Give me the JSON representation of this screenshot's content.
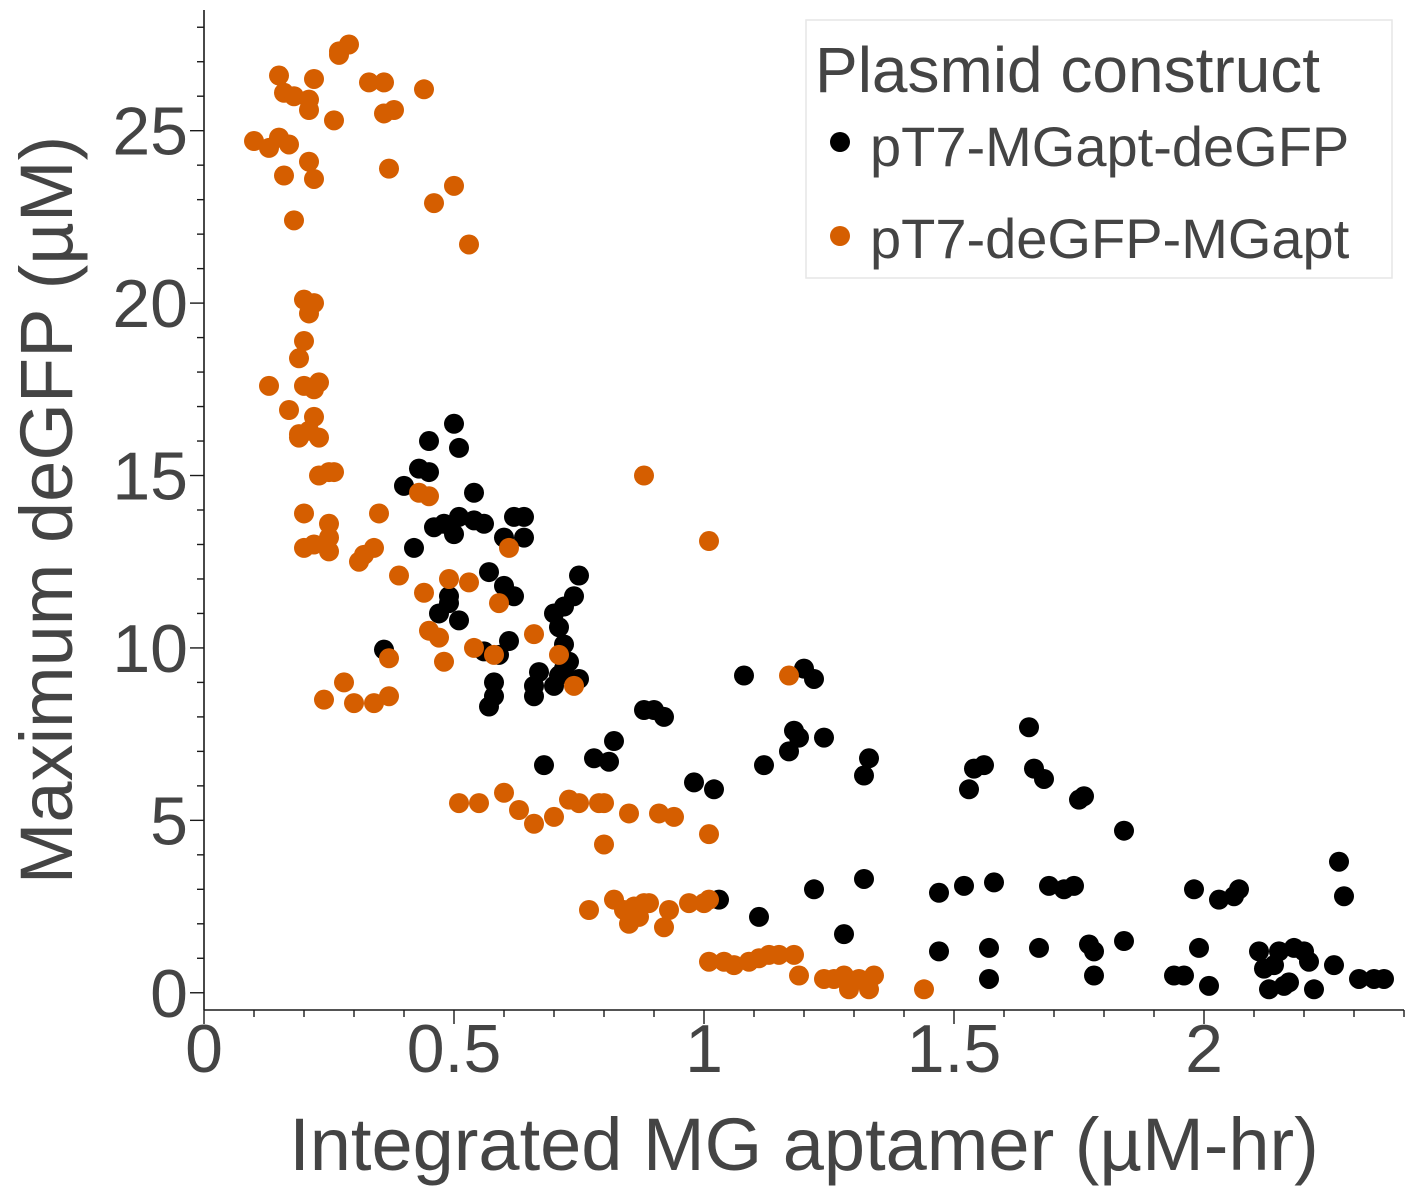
{
  "chart_data": {
    "type": "scatter",
    "title": "",
    "xlabel": "Integrated MG aptamer (µM-hr)",
    "ylabel": "Maximum deGFP (µM)",
    "xlim": [
      0,
      2.4
    ],
    "ylim": [
      -0.5,
      28.5
    ],
    "x_ticks": [
      0,
      0.5,
      1,
      1.5,
      2
    ],
    "x_tick_labels": [
      "0",
      "0.5",
      "1",
      "1.5",
      "2"
    ],
    "y_ticks": [
      0,
      5,
      10,
      15,
      20,
      25
    ],
    "y_tick_labels": [
      "0",
      "5",
      "10",
      "15",
      "20",
      "25"
    ],
    "grid": false,
    "legend": {
      "title": "Plasmid construct",
      "position": "top-right"
    },
    "series": [
      {
        "name": "pT7-MGapt-deGFP",
        "color": "#000000",
        "points": [
          [
            0.36,
            9.95
          ],
          [
            0.4,
            14.7
          ],
          [
            0.42,
            12.9
          ],
          [
            0.43,
            15.2
          ],
          [
            0.45,
            16.0
          ],
          [
            0.45,
            15.1
          ],
          [
            0.46,
            13.5
          ],
          [
            0.47,
            11.0
          ],
          [
            0.48,
            13.6
          ],
          [
            0.49,
            11.3
          ],
          [
            0.49,
            11.5
          ],
          [
            0.5,
            16.5
          ],
          [
            0.5,
            13.3
          ],
          [
            0.51,
            13.8
          ],
          [
            0.51,
            15.8
          ],
          [
            0.51,
            10.8
          ],
          [
            0.54,
            13.7
          ],
          [
            0.54,
            14.5
          ],
          [
            0.56,
            13.6
          ],
          [
            0.56,
            9.9
          ],
          [
            0.57,
            12.2
          ],
          [
            0.57,
            8.3
          ],
          [
            0.58,
            8.6
          ],
          [
            0.58,
            9.0
          ],
          [
            0.59,
            9.8
          ],
          [
            0.6,
            13.2
          ],
          [
            0.6,
            11.8
          ],
          [
            0.61,
            10.2
          ],
          [
            0.62,
            13.8
          ],
          [
            0.62,
            11.5
          ],
          [
            0.64,
            13.8
          ],
          [
            0.64,
            13.2
          ],
          [
            0.66,
            8.6
          ],
          [
            0.66,
            8.9
          ],
          [
            0.67,
            9.3
          ],
          [
            0.68,
            6.6
          ],
          [
            0.7,
            11.0
          ],
          [
            0.7,
            8.9
          ],
          [
            0.71,
            9.2
          ],
          [
            0.71,
            10.6
          ],
          [
            0.72,
            11.2
          ],
          [
            0.72,
            10.1
          ],
          [
            0.72,
            9.4
          ],
          [
            0.73,
            9.6
          ],
          [
            0.74,
            11.5
          ],
          [
            0.75,
            9.1
          ],
          [
            0.75,
            12.1
          ],
          [
            0.78,
            6.8
          ],
          [
            0.81,
            6.7
          ],
          [
            0.82,
            7.3
          ],
          [
            0.88,
            8.2
          ],
          [
            0.9,
            8.2
          ],
          [
            0.92,
            8.0
          ],
          [
            0.98,
            6.1
          ],
          [
            1.02,
            5.9
          ],
          [
            1.03,
            2.7
          ],
          [
            1.08,
            9.2
          ],
          [
            1.11,
            2.2
          ],
          [
            1.12,
            6.6
          ],
          [
            1.17,
            7.0
          ],
          [
            1.18,
            7.6
          ],
          [
            1.19,
            7.4
          ],
          [
            1.2,
            9.4
          ],
          [
            1.22,
            9.1
          ],
          [
            1.22,
            3.0
          ],
          [
            1.24,
            7.4
          ],
          [
            1.28,
            1.7
          ],
          [
            1.32,
            3.3
          ],
          [
            1.32,
            6.3
          ],
          [
            1.33,
            6.8
          ],
          [
            1.47,
            2.9
          ],
          [
            1.47,
            1.2
          ],
          [
            1.52,
            3.1
          ],
          [
            1.53,
            5.9
          ],
          [
            1.54,
            6.5
          ],
          [
            1.56,
            6.6
          ],
          [
            1.57,
            1.3
          ],
          [
            1.57,
            0.4
          ],
          [
            1.58,
            3.2
          ],
          [
            1.65,
            7.7
          ],
          [
            1.66,
            6.5
          ],
          [
            1.67,
            1.3
          ],
          [
            1.68,
            6.2
          ],
          [
            1.69,
            3.1
          ],
          [
            1.72,
            3.0
          ],
          [
            1.74,
            3.1
          ],
          [
            1.75,
            5.6
          ],
          [
            1.76,
            5.7
          ],
          [
            1.77,
            1.4
          ],
          [
            1.78,
            0.5
          ],
          [
            1.78,
            1.2
          ],
          [
            1.84,
            1.5
          ],
          [
            1.84,
            4.7
          ],
          [
            1.94,
            0.5
          ],
          [
            1.96,
            0.5
          ],
          [
            1.98,
            3.0
          ],
          [
            1.99,
            1.3
          ],
          [
            2.01,
            0.2
          ],
          [
            2.03,
            2.7
          ],
          [
            2.06,
            2.8
          ],
          [
            2.07,
            3.0
          ],
          [
            2.11,
            1.2
          ],
          [
            2.12,
            0.7
          ],
          [
            2.13,
            0.1
          ],
          [
            2.14,
            0.8
          ],
          [
            2.15,
            1.2
          ],
          [
            2.16,
            0.2
          ],
          [
            2.17,
            0.3
          ],
          [
            2.18,
            1.3
          ],
          [
            2.2,
            1.2
          ],
          [
            2.21,
            0.9
          ],
          [
            2.22,
            0.1
          ],
          [
            2.26,
            0.8
          ],
          [
            2.27,
            3.8
          ],
          [
            2.28,
            2.8
          ],
          [
            2.31,
            0.4
          ],
          [
            2.34,
            0.4
          ],
          [
            2.36,
            0.4
          ]
        ]
      },
      {
        "name": "pT7-deGFP-MGapt",
        "color": "#d55e00",
        "points": [
          [
            0.1,
            24.7
          ],
          [
            0.13,
            24.5
          ],
          [
            0.13,
            17.6
          ],
          [
            0.15,
            26.6
          ],
          [
            0.15,
            24.8
          ],
          [
            0.16,
            26.1
          ],
          [
            0.16,
            23.7
          ],
          [
            0.17,
            24.6
          ],
          [
            0.17,
            16.9
          ],
          [
            0.18,
            26.0
          ],
          [
            0.18,
            22.4
          ],
          [
            0.19,
            18.4
          ],
          [
            0.19,
            16.1
          ],
          [
            0.19,
            16.2
          ],
          [
            0.2,
            20.1
          ],
          [
            0.2,
            18.9
          ],
          [
            0.2,
            17.6
          ],
          [
            0.2,
            13.9
          ],
          [
            0.2,
            12.9
          ],
          [
            0.21,
            25.9
          ],
          [
            0.21,
            24.1
          ],
          [
            0.21,
            25.6
          ],
          [
            0.21,
            19.7
          ],
          [
            0.21,
            16.3
          ],
          [
            0.22,
            26.5
          ],
          [
            0.22,
            20.0
          ],
          [
            0.22,
            23.6
          ],
          [
            0.22,
            17.5
          ],
          [
            0.22,
            16.7
          ],
          [
            0.22,
            13.0
          ],
          [
            0.23,
            15.0
          ],
          [
            0.23,
            17.7
          ],
          [
            0.23,
            16.1
          ],
          [
            0.24,
            8.5
          ],
          [
            0.25,
            15.1
          ],
          [
            0.25,
            13.6
          ],
          [
            0.25,
            13.2
          ],
          [
            0.25,
            12.8
          ],
          [
            0.26,
            15.1
          ],
          [
            0.26,
            25.3
          ],
          [
            0.27,
            27.3
          ],
          [
            0.27,
            27.2
          ],
          [
            0.28,
            9.0
          ],
          [
            0.29,
            27.5
          ],
          [
            0.3,
            8.4
          ],
          [
            0.31,
            12.5
          ],
          [
            0.32,
            12.7
          ],
          [
            0.33,
            26.4
          ],
          [
            0.34,
            8.4
          ],
          [
            0.34,
            12.9
          ],
          [
            0.35,
            13.9
          ],
          [
            0.36,
            26.4
          ],
          [
            0.36,
            25.5
          ],
          [
            0.37,
            23.9
          ],
          [
            0.37,
            9.7
          ],
          [
            0.37,
            8.6
          ],
          [
            0.38,
            25.6
          ],
          [
            0.39,
            12.1
          ],
          [
            0.43,
            14.5
          ],
          [
            0.44,
            26.2
          ],
          [
            0.44,
            11.6
          ],
          [
            0.45,
            10.5
          ],
          [
            0.45,
            14.4
          ],
          [
            0.46,
            22.9
          ],
          [
            0.47,
            10.3
          ],
          [
            0.48,
            9.6
          ],
          [
            0.49,
            12.0
          ],
          [
            0.5,
            23.4
          ],
          [
            0.51,
            5.5
          ],
          [
            0.53,
            21.7
          ],
          [
            0.53,
            11.9
          ],
          [
            0.54,
            10.0
          ],
          [
            0.55,
            5.5
          ],
          [
            0.58,
            9.8
          ],
          [
            0.59,
            11.3
          ],
          [
            0.6,
            5.8
          ],
          [
            0.61,
            12.9
          ],
          [
            0.63,
            5.3
          ],
          [
            0.66,
            10.4
          ],
          [
            0.66,
            4.9
          ],
          [
            0.7,
            5.1
          ],
          [
            0.71,
            9.8
          ],
          [
            0.73,
            5.6
          ],
          [
            0.74,
            8.9
          ],
          [
            0.75,
            5.5
          ],
          [
            0.77,
            2.4
          ],
          [
            0.79,
            5.5
          ],
          [
            0.8,
            4.3
          ],
          [
            0.8,
            5.5
          ],
          [
            0.82,
            2.7
          ],
          [
            0.84,
            2.4
          ],
          [
            0.85,
            2.0
          ],
          [
            0.85,
            5.2
          ],
          [
            0.86,
            2.5
          ],
          [
            0.87,
            2.2
          ],
          [
            0.88,
            2.6
          ],
          [
            0.88,
            15.0
          ],
          [
            0.89,
            2.6
          ],
          [
            0.91,
            5.2
          ],
          [
            0.92,
            1.9
          ],
          [
            0.93,
            2.4
          ],
          [
            0.94,
            5.1
          ],
          [
            0.97,
            2.6
          ],
          [
            1.0,
            2.6
          ],
          [
            1.01,
            2.7
          ],
          [
            1.01,
            4.6
          ],
          [
            1.01,
            13.1
          ],
          [
            1.01,
            0.9
          ],
          [
            1.04,
            0.9
          ],
          [
            1.06,
            0.8
          ],
          [
            1.09,
            0.9
          ],
          [
            1.11,
            1.0
          ],
          [
            1.13,
            1.1
          ],
          [
            1.15,
            1.1
          ],
          [
            1.17,
            9.2
          ],
          [
            1.18,
            1.1
          ],
          [
            1.19,
            0.5
          ],
          [
            1.24,
            0.4
          ],
          [
            1.26,
            0.4
          ],
          [
            1.28,
            0.5
          ],
          [
            1.28,
            0.4
          ],
          [
            1.29,
            0.1
          ],
          [
            1.31,
            0.4
          ],
          [
            1.33,
            0.1
          ],
          [
            1.34,
            0.5
          ],
          [
            1.44,
            0.1
          ]
        ]
      }
    ]
  }
}
